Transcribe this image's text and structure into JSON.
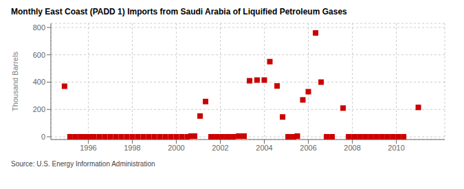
{
  "chart_data": {
    "type": "scatter",
    "title": "Monthly East Coast (PADD 1) Imports from Saudi Arabia of Liquified Petroleum Gases",
    "ylabel": "Thousand Barrels",
    "source": "Source: U.S. Energy Information Administration",
    "color": "#cc0000",
    "marker": "square",
    "grid": true,
    "xlim": [
      1994.3,
      2012.2
    ],
    "ylim": [
      -20,
      830
    ],
    "xticks": [
      1996,
      1998,
      2000,
      2002,
      2004,
      2006,
      2008,
      2010
    ],
    "yticks": [
      0,
      200,
      400,
      600,
      800
    ],
    "x": [
      1994.92,
      1995.17,
      1995.42,
      1995.67,
      1995.83,
      1996.08,
      1996.25,
      1996.5,
      1996.75,
      1997.0,
      1997.25,
      1997.5,
      1997.75,
      1998.0,
      1998.25,
      1998.5,
      1998.75,
      1999.0,
      1999.25,
      1999.5,
      1999.75,
      2000.0,
      2000.25,
      2000.5,
      2000.67,
      2000.83,
      2001.08,
      2001.33,
      2001.58,
      2001.83,
      2002.08,
      2002.33,
      2002.58,
      2002.83,
      2003.08,
      2003.33,
      2003.67,
      2004.0,
      2004.25,
      2004.58,
      2004.83,
      2005.08,
      2005.33,
      2005.5,
      2005.75,
      2006.0,
      2006.33,
      2006.58,
      2006.83,
      2007.08,
      2007.58,
      2007.83,
      2008.08,
      2008.33,
      2008.58,
      2008.83,
      2009.08,
      2009.33,
      2009.58,
      2009.83,
      2010.08,
      2010.33,
      2011.0
    ],
    "values": [
      370,
      0,
      0,
      0,
      0,
      0,
      0,
      0,
      0,
      0,
      0,
      0,
      0,
      0,
      0,
      0,
      0,
      0,
      0,
      0,
      0,
      0,
      0,
      0,
      5,
      5,
      152,
      258,
      0,
      0,
      0,
      0,
      0,
      5,
      5,
      410,
      415,
      415,
      550,
      372,
      145,
      0,
      0,
      5,
      270,
      330,
      760,
      400,
      0,
      0,
      210,
      0,
      0,
      0,
      0,
      0,
      0,
      0,
      0,
      0,
      0,
      0,
      215
    ]
  }
}
